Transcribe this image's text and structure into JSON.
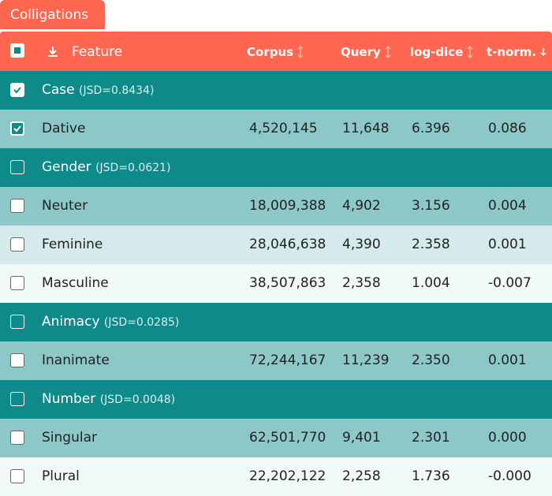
{
  "tab": "Colligations",
  "header": {
    "feature": "Feature",
    "columns": [
      "Corpus",
      "Query",
      "log-dice",
      "t-norm."
    ],
    "sorted_column": 3,
    "select_all": "indeterminate"
  },
  "rows": [
    {
      "label": "Case",
      "note": "(JSD=0.8434)",
      "checked": true,
      "color": "#0e8a8a"
    },
    {
      "label": "Dative",
      "cells": [
        "4,520,145",
        "11,648",
        "6.396",
        "0.086"
      ],
      "checked": true,
      "color": "#8cc8c8"
    },
    {
      "label": "Gender",
      "note": "(JSD=0.0621)",
      "checked": false,
      "color": "#0e8a8a"
    },
    {
      "label": "Neuter",
      "cells": [
        "18,009,388",
        "4,902",
        "3.156",
        "0.004"
      ],
      "checked": false,
      "color": "#8cc8c8"
    },
    {
      "label": "Feminine",
      "cells": [
        "28,046,638",
        "4,390",
        "2.358",
        "0.001"
      ],
      "checked": false,
      "color": "#d5ebeb"
    },
    {
      "label": "Masculine",
      "cells": [
        "38,507,863",
        "2,358",
        "1.004",
        "-0.007"
      ],
      "checked": false,
      "color": "#f1f8f8"
    },
    {
      "label": "Animacy",
      "note": "(JSD=0.0285)",
      "checked": false,
      "color": "#0e8a8a"
    },
    {
      "label": "Inanimate",
      "cells": [
        "72,244,167",
        "11,239",
        "2.350",
        "0.001"
      ],
      "checked": false,
      "color": "#8cc8c8"
    },
    {
      "label": "Number",
      "note": "(JSD=0.0048)",
      "checked": false,
      "color": "#0e8a8a"
    },
    {
      "label": "Singular",
      "cells": [
        "62,501,770",
        "9,401",
        "2.301",
        "0.000"
      ],
      "checked": false,
      "color": "#8cc8c8"
    },
    {
      "label": "Plural",
      "cells": [
        "22,202,122",
        "2,258",
        "1.736",
        "-0.000"
      ],
      "checked": false,
      "color": "#f1f8f8"
    }
  ]
}
